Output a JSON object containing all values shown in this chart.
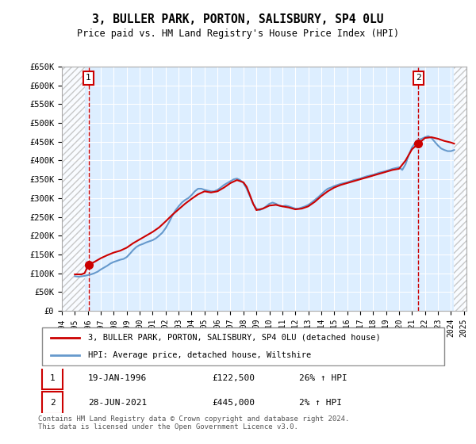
{
  "title": "3, BULLER PARK, PORTON, SALISBURY, SP4 0LU",
  "subtitle": "Price paid vs. HM Land Registry's House Price Index (HPI)",
  "xlabel": "",
  "ylabel": "",
  "ylim": [
    0,
    650000
  ],
  "yticks": [
    0,
    50000,
    100000,
    150000,
    200000,
    250000,
    300000,
    350000,
    400000,
    450000,
    500000,
    550000,
    600000,
    650000
  ],
  "ytick_labels": [
    "£0",
    "£50K",
    "£100K",
    "£150K",
    "£200K",
    "£250K",
    "£300K",
    "£350K",
    "£400K",
    "£450K",
    "£500K",
    "£550K",
    "£600K",
    "£650K"
  ],
  "sale1_date": 1996.05,
  "sale1_price": 122500,
  "sale1_label": "1",
  "sale2_date": 2021.49,
  "sale2_price": 445000,
  "sale2_label": "2",
  "hpi_line_color": "#6699cc",
  "price_line_color": "#cc0000",
  "dashed_line_color": "#cc0000",
  "marker_color": "#cc0000",
  "bg_color": "#ddeeff",
  "grid_color": "#ffffff",
  "hatch_color": "#cccccc",
  "legend_label_price": "3, BULLER PARK, PORTON, SALISBURY, SP4 0LU (detached house)",
  "legend_label_hpi": "HPI: Average price, detached house, Wiltshire",
  "annotation1_date": "19-JAN-1996",
  "annotation1_price": "£122,500",
  "annotation1_hpi": "26% ↑ HPI",
  "annotation2_date": "28-JUN-2021",
  "annotation2_price": "£445,000",
  "annotation2_hpi": "2% ↑ HPI",
  "footer": "Contains HM Land Registry data © Crown copyright and database right 2024.\nThis data is licensed under the Open Government Licence v3.0.",
  "hpi_data_x": [
    1995.0,
    1995.25,
    1995.5,
    1995.75,
    1996.0,
    1996.25,
    1996.5,
    1996.75,
    1997.0,
    1997.25,
    1997.5,
    1997.75,
    1998.0,
    1998.25,
    1998.5,
    1998.75,
    1999.0,
    1999.25,
    1999.5,
    1999.75,
    2000.0,
    2000.25,
    2000.5,
    2000.75,
    2001.0,
    2001.25,
    2001.5,
    2001.75,
    2002.0,
    2002.25,
    2002.5,
    2002.75,
    2003.0,
    2003.25,
    2003.5,
    2003.75,
    2004.0,
    2004.25,
    2004.5,
    2004.75,
    2005.0,
    2005.25,
    2005.5,
    2005.75,
    2006.0,
    2006.25,
    2006.5,
    2006.75,
    2007.0,
    2007.25,
    2007.5,
    2007.75,
    2008.0,
    2008.25,
    2008.5,
    2008.75,
    2009.0,
    2009.25,
    2009.5,
    2009.75,
    2010.0,
    2010.25,
    2010.5,
    2010.75,
    2011.0,
    2011.25,
    2011.5,
    2011.75,
    2012.0,
    2012.25,
    2012.5,
    2012.75,
    2013.0,
    2013.25,
    2013.5,
    2013.75,
    2014.0,
    2014.25,
    2014.5,
    2014.75,
    2015.0,
    2015.25,
    2015.5,
    2015.75,
    2016.0,
    2016.25,
    2016.5,
    2016.75,
    2017.0,
    2017.25,
    2017.5,
    2017.75,
    2018.0,
    2018.25,
    2018.5,
    2018.75,
    2019.0,
    2019.25,
    2019.5,
    2019.75,
    2020.0,
    2020.25,
    2020.5,
    2020.75,
    2021.0,
    2021.25,
    2021.5,
    2021.75,
    2022.0,
    2022.25,
    2022.5,
    2022.75,
    2023.0,
    2023.25,
    2023.5,
    2023.75,
    2024.0,
    2024.25
  ],
  "hpi_data_y": [
    92000,
    91000,
    91500,
    93000,
    95000,
    97000,
    100000,
    104000,
    110000,
    115000,
    120000,
    126000,
    130000,
    133000,
    136000,
    138000,
    143000,
    152000,
    162000,
    170000,
    175000,
    178000,
    182000,
    185000,
    188000,
    193000,
    200000,
    208000,
    220000,
    235000,
    252000,
    267000,
    278000,
    288000,
    295000,
    300000,
    308000,
    318000,
    325000,
    325000,
    322000,
    320000,
    318000,
    318000,
    322000,
    328000,
    335000,
    340000,
    345000,
    350000,
    352000,
    348000,
    340000,
    325000,
    305000,
    285000,
    272000,
    268000,
    272000,
    278000,
    285000,
    288000,
    285000,
    280000,
    278000,
    280000,
    278000,
    275000,
    272000,
    272000,
    275000,
    278000,
    282000,
    288000,
    295000,
    302000,
    310000,
    318000,
    325000,
    328000,
    332000,
    335000,
    338000,
    340000,
    342000,
    345000,
    348000,
    350000,
    352000,
    355000,
    358000,
    360000,
    362000,
    365000,
    368000,
    370000,
    372000,
    375000,
    378000,
    380000,
    382000,
    375000,
    390000,
    415000,
    435000,
    448000,
    455000,
    458000,
    462000,
    465000,
    460000,
    450000,
    440000,
    432000,
    428000,
    425000,
    425000,
    428000
  ],
  "price_data_x": [
    1995.0,
    1995.25,
    1995.5,
    1995.75,
    1996.05,
    1996.5,
    1997.0,
    1997.5,
    1998.0,
    1998.5,
    1999.0,
    1999.5,
    2000.0,
    2000.5,
    2001.0,
    2001.5,
    2002.0,
    2002.5,
    2003.0,
    2003.5,
    2004.0,
    2004.5,
    2005.0,
    2005.5,
    2006.0,
    2006.5,
    2007.0,
    2007.5,
    2008.0,
    2008.25,
    2008.5,
    2008.75,
    2009.0,
    2009.5,
    2010.0,
    2010.5,
    2011.0,
    2011.5,
    2012.0,
    2012.5,
    2013.0,
    2013.5,
    2014.0,
    2014.5,
    2015.0,
    2015.5,
    2016.0,
    2016.5,
    2017.0,
    2017.5,
    2018.0,
    2018.5,
    2019.0,
    2019.5,
    2020.0,
    2020.5,
    2021.0,
    2021.49,
    2022.0,
    2022.5,
    2023.0,
    2023.5,
    2024.0,
    2024.25
  ],
  "price_data_y": [
    97000,
    97000,
    97000,
    100000,
    122500,
    130000,
    140000,
    148000,
    155000,
    160000,
    168000,
    180000,
    190000,
    200000,
    210000,
    222000,
    238000,
    255000,
    270000,
    285000,
    298000,
    310000,
    318000,
    315000,
    318000,
    328000,
    340000,
    348000,
    342000,
    330000,
    308000,
    285000,
    268000,
    272000,
    280000,
    282000,
    278000,
    275000,
    270000,
    272000,
    278000,
    290000,
    305000,
    318000,
    328000,
    335000,
    340000,
    345000,
    350000,
    355000,
    360000,
    365000,
    370000,
    375000,
    378000,
    400000,
    430000,
    445000,
    460000,
    462000,
    458000,
    452000,
    448000,
    445000
  ]
}
